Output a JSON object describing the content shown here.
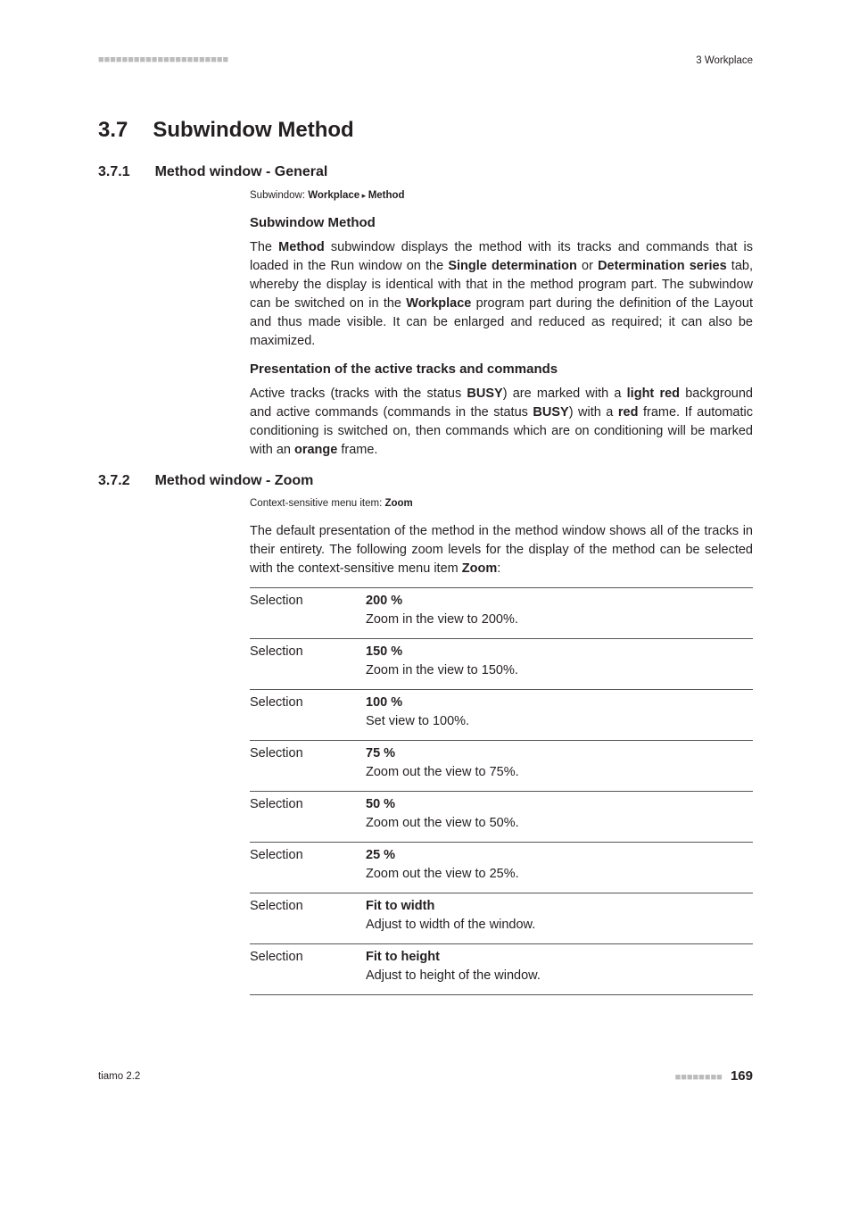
{
  "header": {
    "left_marks": "■■■■■■■■■■■■■■■■■■■■■■",
    "right": "3 Workplace"
  },
  "section": {
    "number": "3.7",
    "title": "Subwindow Method"
  },
  "sub1": {
    "number": "3.7.1",
    "title": "Method window - General",
    "subline_prefix": "Subwindow: ",
    "subline_b1": "Workplace",
    "subline_sep": " ▸ ",
    "subline_b2": "Method",
    "h3a": "Subwindow Method",
    "p1_a": "The ",
    "p1_b1": "Method",
    "p1_b": " subwindow displays the method with its tracks and commands that is loaded in the Run window on the ",
    "p1_b2": "Single determination",
    "p1_c": " or ",
    "p1_b3": "Deter­mination series",
    "p1_d": " tab, whereby the display is identical with that in the method program part. The subwindow can be switched on in the ",
    "p1_b4": "Work­place",
    "p1_e": " program part during the definition of the Layout and thus made visible. It can be enlarged and reduced as required; it can also be maximized.",
    "h3b": "Presentation of the active tracks and commands",
    "p2_a": "Active tracks (tracks with the status ",
    "p2_b1": "BUSY",
    "p2_b": ") are marked with a ",
    "p2_b2": "light red",
    "p2_c": " background and active commands (commands in the status ",
    "p2_b3": "BUSY",
    "p2_d": ") with a ",
    "p2_b4": "red",
    "p2_e": " frame. If automatic conditioning is switched on, then commands which are on conditioning will be marked with an ",
    "p2_b5": "orange",
    "p2_f": " frame."
  },
  "sub2": {
    "number": "3.7.2",
    "title": "Method window - Zoom",
    "subline_prefix": "Context-sensitive menu item: ",
    "subline_b1": "Zoom",
    "p1_a": "The default presentation of the method in the method window shows all of the tracks in their entirety. The following zoom levels for the display of the method can be selected with the context-sensitive menu item ",
    "p1_b1": "Zoom",
    "p1_b": ":",
    "options": [
      {
        "label": "Selection",
        "value": "200 %",
        "desc": "Zoom in the view to 200%."
      },
      {
        "label": "Selection",
        "value": "150 %",
        "desc": "Zoom in the view to 150%."
      },
      {
        "label": "Selection",
        "value": "100 %",
        "desc": "Set view to 100%."
      },
      {
        "label": "Selection",
        "value": "75 %",
        "desc": "Zoom out the view to 75%."
      },
      {
        "label": "Selection",
        "value": "50 %",
        "desc": "Zoom out the view to 50%."
      },
      {
        "label": "Selection",
        "value": "25 %",
        "desc": "Zoom out the view to 25%."
      },
      {
        "label": "Selection",
        "value": "Fit to width",
        "desc": "Adjust to width of the window."
      },
      {
        "label": "Selection",
        "value": "Fit to height",
        "desc": "Adjust to height of the window."
      }
    ]
  },
  "footer": {
    "left": "tiamo 2.2",
    "bars": "■■■■■■■■",
    "page": "169"
  }
}
